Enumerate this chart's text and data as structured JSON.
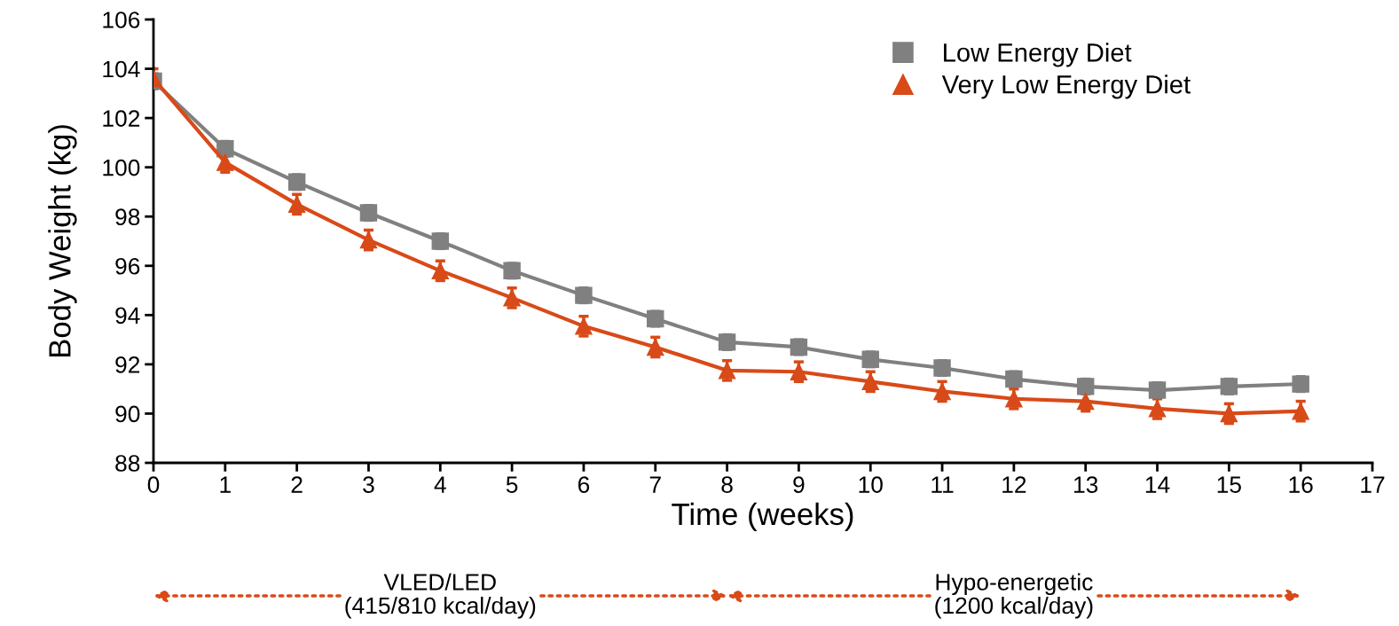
{
  "chart_data": {
    "type": "line",
    "xlabel": "Time (weeks)",
    "ylabel": "Body Weight (kg)",
    "x": [
      0,
      1,
      2,
      3,
      4,
      5,
      6,
      7,
      8,
      9,
      10,
      11,
      12,
      13,
      14,
      15,
      16
    ],
    "series": [
      {
        "name": "Low Energy Diet",
        "color": "#808080",
        "marker": "square",
        "values": [
          103.5,
          100.75,
          99.4,
          98.15,
          97.0,
          95.8,
          94.8,
          93.85,
          92.9,
          92.7,
          92.2,
          91.85,
          91.4,
          91.1,
          90.95,
          91.1,
          91.2
        ],
        "errors": [
          0.3,
          0.3,
          0.3,
          0.3,
          0.3,
          0.3,
          0.3,
          0.3,
          0.3,
          0.3,
          0.3,
          0.3,
          0.3,
          0.3,
          0.3,
          0.3,
          0.3
        ]
      },
      {
        "name": "Very Low Energy Diet",
        "color": "#d84a18",
        "marker": "triangle",
        "values": [
          103.6,
          100.2,
          98.5,
          97.05,
          95.8,
          94.7,
          93.55,
          92.7,
          91.75,
          91.7,
          91.3,
          90.9,
          90.6,
          90.5,
          90.2,
          90.0,
          90.1
        ],
        "errors": [
          0.4,
          0.4,
          0.4,
          0.4,
          0.4,
          0.4,
          0.4,
          0.4,
          0.4,
          0.4,
          0.4,
          0.4,
          0.4,
          0.4,
          0.4,
          0.4,
          0.4
        ]
      }
    ],
    "xlim": [
      0,
      17
    ],
    "xticks": [
      0,
      1,
      2,
      3,
      4,
      5,
      6,
      7,
      8,
      9,
      10,
      11,
      12,
      13,
      14,
      15,
      16,
      17
    ],
    "ylim": [
      88,
      106
    ],
    "yticks": [
      88,
      90,
      92,
      94,
      96,
      98,
      100,
      102,
      104,
      106
    ],
    "legend": "top right",
    "grid": false,
    "line_style": "solid",
    "annotations": [
      "VLED/LED\n(415/810 kcal/day)",
      "Hypo-energetic\n(1200 kcal/day)"
    ]
  }
}
